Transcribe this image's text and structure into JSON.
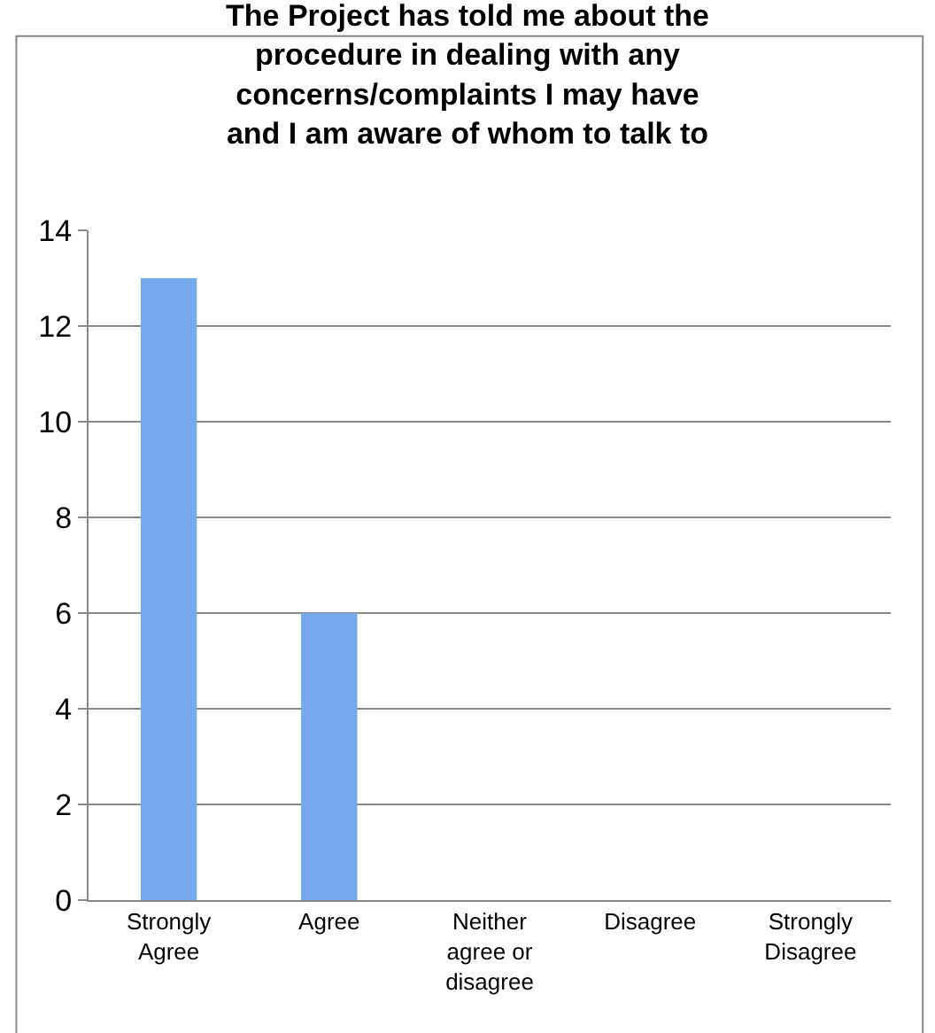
{
  "chart_data": {
    "type": "bar",
    "title": "The Project has told me about the procedure in dealing with any concerns/complaints I may have and I am aware of whom to talk to",
    "categories": [
      "Strongly Agree",
      "Agree",
      "Neither agree or disagree",
      "Disagree",
      "Strongly Disagree"
    ],
    "values": [
      13,
      6,
      0,
      0,
      0
    ],
    "color": "#75a9ec",
    "ylim": [
      0,
      14
    ],
    "yticks": [
      0,
      2,
      4,
      6,
      8,
      10,
      12,
      14
    ],
    "grid": "y",
    "legend": false
  }
}
